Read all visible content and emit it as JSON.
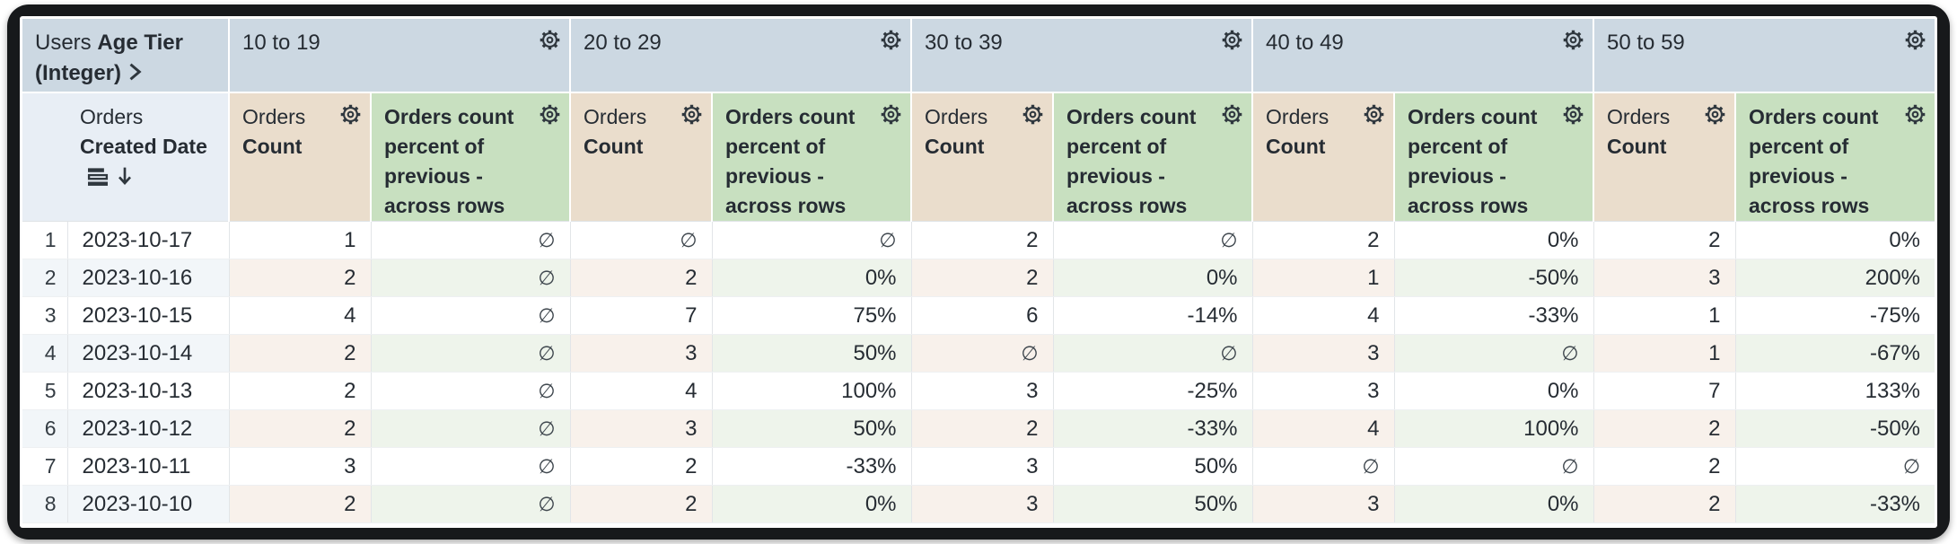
{
  "table": {
    "corner": {
      "view": "Users",
      "field": "Age Tier (Integer)"
    },
    "row_dimension": {
      "view": "Orders",
      "field": "Created Date",
      "sort_direction": "descending"
    },
    "tiers": [
      "10 to 19",
      "20 to 29",
      "30 to 39",
      "40 to 49",
      "50 to 59"
    ],
    "measures": {
      "count": {
        "view": "Orders",
        "field": "Count"
      },
      "percent": {
        "label": "Orders count percent of previous - across rows"
      }
    },
    "null_glyph": "∅",
    "rows": [
      {
        "n": "1",
        "date": "2023-10-17",
        "values": [
          "1",
          "∅",
          "∅",
          "∅",
          "2",
          "∅",
          "2",
          "0%",
          "2",
          "0%"
        ]
      },
      {
        "n": "2",
        "date": "2023-10-16",
        "values": [
          "2",
          "∅",
          "2",
          "0%",
          "2",
          "0%",
          "1",
          "-50%",
          "3",
          "200%"
        ]
      },
      {
        "n": "3",
        "date": "2023-10-15",
        "values": [
          "4",
          "∅",
          "7",
          "75%",
          "6",
          "-14%",
          "4",
          "-33%",
          "1",
          "-75%"
        ]
      },
      {
        "n": "4",
        "date": "2023-10-14",
        "values": [
          "2",
          "∅",
          "3",
          "50%",
          "∅",
          "∅",
          "3",
          "∅",
          "1",
          "-67%"
        ]
      },
      {
        "n": "5",
        "date": "2023-10-13",
        "values": [
          "2",
          "∅",
          "4",
          "100%",
          "3",
          "-25%",
          "3",
          "0%",
          "7",
          "133%"
        ]
      },
      {
        "n": "6",
        "date": "2023-10-12",
        "values": [
          "2",
          "∅",
          "3",
          "50%",
          "2",
          "-33%",
          "4",
          "100%",
          "2",
          "-50%"
        ]
      },
      {
        "n": "7",
        "date": "2023-10-11",
        "values": [
          "3",
          "∅",
          "2",
          "-33%",
          "3",
          "50%",
          "∅",
          "∅",
          "2",
          "∅"
        ]
      },
      {
        "n": "8",
        "date": "2023-10-10",
        "values": [
          "2",
          "∅",
          "2",
          "0%",
          "3",
          "50%",
          "3",
          "0%",
          "2",
          "-33%"
        ]
      }
    ]
  },
  "icons": {
    "header_menu": "gear-icon",
    "sort": "down-arrow-icon",
    "subtotal": "list-bars-icon",
    "expand": "chevron-right-icon"
  },
  "colors": {
    "tier_header_bg": "#ccd8e2",
    "dimension_header_bg": "#e8eef5",
    "count_header_bg": "#eaddcc",
    "percent_header_bg": "#c8e0c0",
    "even_row_dim_bg": "#f2f6f9",
    "even_row_count_bg": "#f8f1eb",
    "even_row_percent_bg": "#eef4eb",
    "text": "#262c33",
    "frame": "#17191b"
  }
}
